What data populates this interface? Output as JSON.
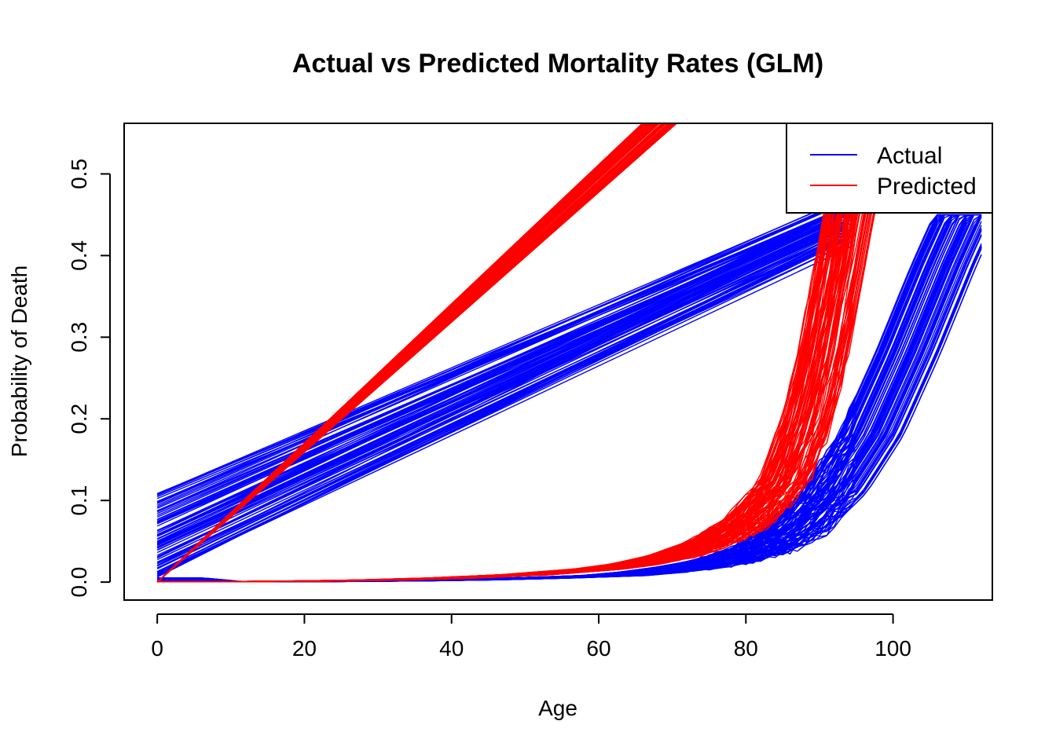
{
  "chart_data": {
    "type": "line",
    "title": "Actual vs Predicted Mortality Rates (GLM)",
    "xlabel": "Age",
    "ylabel": "Probability of Death",
    "xlim": [
      -4.5,
      113.5
    ],
    "ylim": [
      -0.022,
      0.562
    ],
    "x_ticks": [
      "0",
      "20",
      "40",
      "60",
      "80",
      "100"
    ],
    "y_ticks": [
      "0.0",
      "0.1",
      "0.2",
      "0.3",
      "0.4",
      "0.5"
    ],
    "legend": {
      "position": "top-right",
      "entries": [
        "Actual",
        "Predicted"
      ]
    },
    "colors": {
      "Actual": "#0000ff",
      "Predicted": "#ff0000"
    },
    "grid": false,
    "series": [
      {
        "name": "Actual",
        "color": "#0000ff",
        "approx_band_lines": [
          {
            "x": [
              0,
              92
            ],
            "y": [
              0.11,
              0.47
            ]
          },
          {
            "x": [
              0,
              92
            ],
            "y": [
              0.08,
              0.45
            ]
          },
          {
            "x": [
              0,
              92
            ],
            "y": [
              0.05,
              0.44
            ]
          },
          {
            "x": [
              0,
              92
            ],
            "y": [
              0.02,
              0.42
            ]
          },
          {
            "x": [
              0,
              92
            ],
            "y": [
              0.005,
              0.41
            ]
          }
        ],
        "approx_curve_points": {
          "x": [
            0,
            5,
            10,
            20,
            30,
            40,
            50,
            60,
            65,
            70,
            75,
            80,
            85,
            90,
            95,
            100,
            105,
            108
          ],
          "y": [
            0.005,
            0.0008,
            0.0003,
            0.0008,
            0.0015,
            0.0028,
            0.005,
            0.008,
            0.012,
            0.018,
            0.026,
            0.04,
            0.065,
            0.11,
            0.18,
            0.28,
            0.39,
            0.45
          ]
        }
      },
      {
        "name": "Predicted",
        "color": "#ff0000",
        "approx_band_lines": [
          {
            "x": [
              0,
              72
            ],
            "y": [
              0,
              0.58
            ]
          },
          {
            "x": [
              0,
              70
            ],
            "y": [
              0,
              0.58
            ]
          },
          {
            "x": [
              0,
              68
            ],
            "y": [
              0,
              0.58
            ]
          }
        ],
        "approx_curve_points": {
          "x": [
            0,
            5,
            10,
            20,
            30,
            40,
            50,
            60,
            65,
            70,
            75,
            80,
            85,
            88,
            90,
            92,
            94,
            96,
            98,
            100
          ],
          "y": [
            0.0005,
            0.0004,
            0.0006,
            0.0012,
            0.0025,
            0.005,
            0.009,
            0.016,
            0.022,
            0.032,
            0.048,
            0.072,
            0.12,
            0.19,
            0.26,
            0.35,
            0.45,
            0.54,
            0.58,
            0.6
          ]
        }
      }
    ]
  }
}
